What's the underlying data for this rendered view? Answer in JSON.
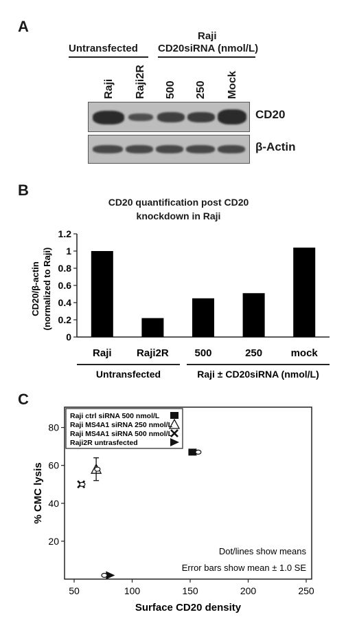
{
  "panelA": {
    "letter": "A",
    "group_untransfected": "Untransfected",
    "group_sirna_line1": "Raji",
    "group_sirna_line2": "CD20siRNA (nmol/L)",
    "lanes": [
      "Raji",
      "Raji2R",
      "500",
      "250",
      "Mock"
    ],
    "blot_cd20_label": "CD20",
    "blot_actin_label": "β-Actin",
    "cd20_band_intensity": [
      1.0,
      0.45,
      0.7,
      0.75,
      1.0
    ]
  },
  "panelB": {
    "letter": "B",
    "title_line1": "CD20 quantification post CD20",
    "title_line2": "knockdown in Raji",
    "ylabel_line1": "CD20/β-actin",
    "ylabel_line2": "(normalized to Raji)",
    "group_untransfected": "Untransfected",
    "group_sirna": "Raji ± CD20siRNA (nmol/L)"
  },
  "panelC": {
    "letter": "C",
    "legend": [
      {
        "label": "Raji ctrl siRNA  500 nmol/L",
        "marker": "■"
      },
      {
        "label": "Raji MS4A1 siRNA 250 nmol/L",
        "marker": "△"
      },
      {
        "label": "Raji MS4A1 siRNA 500 nmol/L",
        "marker": "X"
      },
      {
        "label": "Raji2R untrasfected",
        "marker": "▶"
      }
    ],
    "note1": "Dot/lines show means",
    "note2": "Error bars show mean ± 1.0 SE"
  },
  "chart_data": [
    {
      "type": "bar",
      "title": "CD20 quantification post CD20 knockdown in Raji",
      "categories": [
        "Raji",
        "Raji2R",
        "500",
        "250",
        "mock"
      ],
      "values": [
        1.0,
        0.22,
        0.45,
        0.51,
        1.04
      ],
      "ylabel": "CD20/β-actin (normalized to Raji)",
      "ylim": [
        0,
        1.2
      ],
      "yticks": [
        0,
        0.2,
        0.4,
        0.6,
        0.8,
        1,
        1.2
      ],
      "ytick_labels": [
        "0",
        "0.2",
        "0.4",
        "0.6",
        "0.8",
        "1",
        "1.2"
      ],
      "bar_color": "#000000"
    },
    {
      "type": "scatter",
      "xlabel": "Surface CD20 density",
      "ylabel": "% CMC lysis",
      "xlim": [
        50,
        250
      ],
      "ylim": [
        0,
        90
      ],
      "xticks": [
        50,
        100,
        150,
        200,
        250
      ],
      "yticks": [
        20,
        40,
        60,
        80
      ],
      "series": [
        {
          "name": "Raji ctrl siRNA  500 nmol/L",
          "marker": "square",
          "points": [
            {
              "x": 152,
              "y": 67
            }
          ],
          "mean_x": 157,
          "mean_y": 67
        },
        {
          "name": "Raji MS4A1 siRNA 250 nmol/L",
          "marker": "triangle",
          "points": [
            {
              "x": 69,
              "y": 58
            }
          ],
          "mean_x": 70,
          "mean_y": 58,
          "err_y": 6
        },
        {
          "name": "Raji MS4A1 siRNA 500 nmol/L",
          "marker": "x",
          "points": [
            {
              "x": 56,
              "y": 50
            }
          ],
          "mean_x": 57,
          "mean_y": 50
        },
        {
          "name": "Raji2R untrasfected",
          "marker": "triangle-right",
          "points": [
            {
              "x": 81,
              "y": 2
            }
          ],
          "mean_x": 76,
          "mean_y": 2
        }
      ]
    }
  ]
}
